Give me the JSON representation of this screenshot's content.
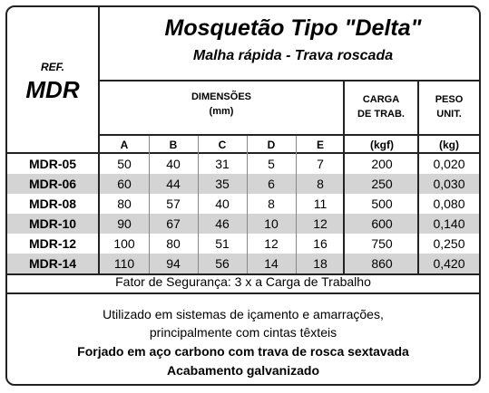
{
  "header": {
    "title": "Mosquetão Tipo \"Delta\"",
    "subtitle": "Malha rápida - Trava roscada",
    "ref_label": "REF.",
    "ref_code": "MDR"
  },
  "groups": {
    "dimensoes_line1": "DIMENSÕES",
    "dimensoes_line2": "(mm)",
    "carga_line1": "CARGA",
    "carga_line2": "DE TRAB.",
    "peso_line1": "PESO",
    "peso_line2": "UNIT."
  },
  "columns": [
    "A",
    "B",
    "C",
    "D",
    "E",
    "(kgf)",
    "(kg)"
  ],
  "rows": [
    {
      "ref": "MDR-05",
      "values": [
        "50",
        "40",
        "31",
        "5",
        "7",
        "200",
        "0,020"
      ]
    },
    {
      "ref": "MDR-06",
      "values": [
        "60",
        "44",
        "35",
        "6",
        "8",
        "250",
        "0,030"
      ]
    },
    {
      "ref": "MDR-08",
      "values": [
        "80",
        "57",
        "40",
        "8",
        "11",
        "500",
        "0,080"
      ]
    },
    {
      "ref": "MDR-10",
      "values": [
        "90",
        "67",
        "46",
        "10",
        "12",
        "600",
        "0,140"
      ]
    },
    {
      "ref": "MDR-12",
      "values": [
        "100",
        "80",
        "51",
        "12",
        "16",
        "750",
        "0,250"
      ]
    },
    {
      "ref": "MDR-14",
      "values": [
        "110",
        "94",
        "56",
        "14",
        "18",
        "860",
        "0,420"
      ]
    }
  ],
  "safety": "Fator de Segurança: 3 x a Carga de Trabalho",
  "notes": {
    "line1": "Utilizado em sistemas de içamento e amarrações,",
    "line2": "principalmente com cintas têxteis",
    "line3": "Forjado em aço carbono com trava de rosca sextavada",
    "line4": "Acabamento galvanizado"
  }
}
